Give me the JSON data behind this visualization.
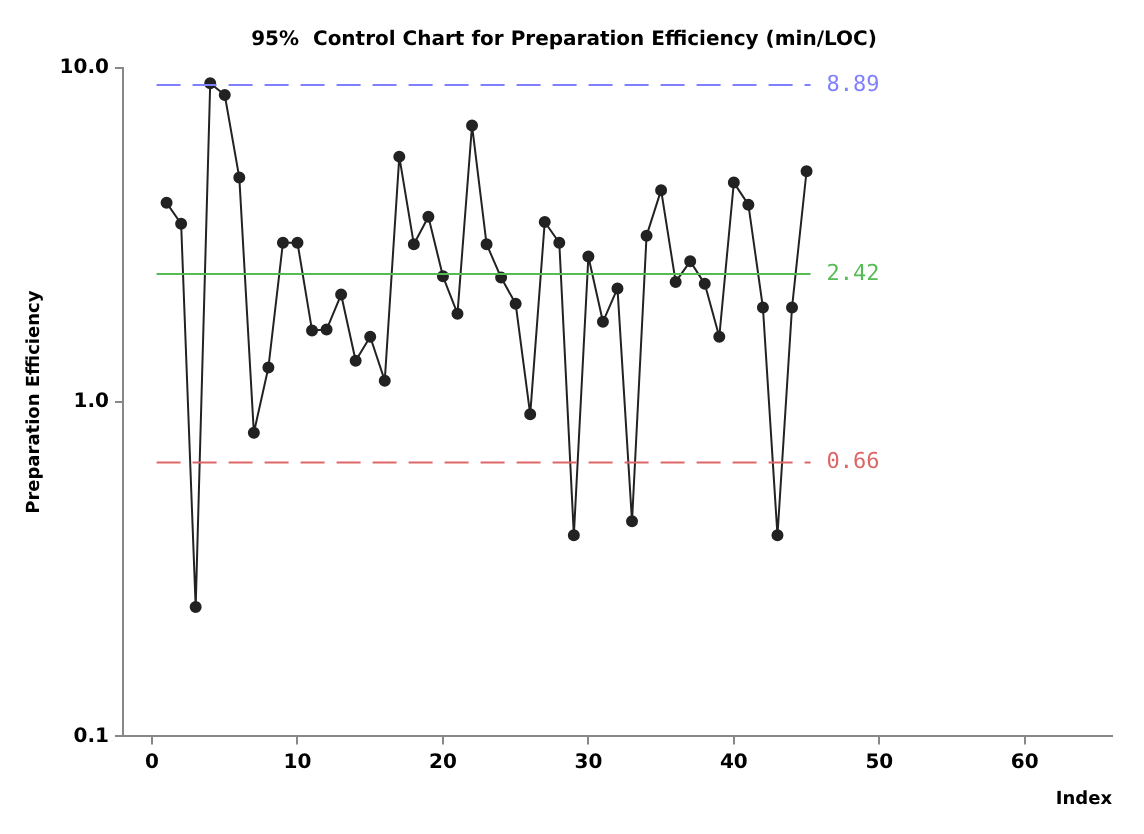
{
  "chart_data": {
    "type": "line",
    "title": "95%  Control Chart for Preparation Efficiency (min/LOC)",
    "xlabel": "Index",
    "ylabel": "Preparation Efficiency",
    "x": [
      1,
      2,
      3,
      4,
      5,
      6,
      7,
      8,
      9,
      10,
      11,
      12,
      13,
      14,
      15,
      16,
      17,
      18,
      19,
      20,
      21,
      22,
      23,
      24,
      25,
      26,
      27,
      28,
      29,
      30,
      31,
      32,
      33,
      34,
      35,
      36,
      37,
      38,
      39,
      40,
      41,
      42,
      43,
      44,
      45
    ],
    "series": [
      {
        "color": "#222222",
        "values": [
          3.95,
          3.42,
          0.244,
          9.0,
          8.3,
          4.7,
          0.81,
          1.27,
          3.0,
          3.0,
          1.64,
          1.65,
          2.1,
          1.33,
          1.57,
          1.16,
          5.43,
          2.97,
          3.59,
          2.38,
          1.84,
          6.73,
          2.97,
          2.36,
          1.97,
          0.92,
          3.46,
          3.0,
          0.4,
          2.73,
          1.74,
          2.19,
          0.44,
          3.15,
          4.31,
          2.29,
          2.64,
          2.26,
          1.57,
          4.54,
          3.9,
          1.92,
          0.4,
          1.92,
          4.91
        ]
      }
    ],
    "log": "y",
    "xlim": [
      -2,
      66
    ],
    "xticks": [
      0,
      10,
      20,
      30,
      40,
      50,
      60
    ],
    "ylim": [
      0.1,
      10
    ],
    "yticks": [
      {
        "value": 0.1,
        "label": "0.1"
      },
      {
        "value": 1,
        "label": "1.0"
      },
      {
        "value": 10,
        "label": "10.0"
      }
    ],
    "ref_lines": [
      {
        "axis": "y",
        "value": 8.89,
        "label": "8.89",
        "color": "#8080ff",
        "line_style": "dashed"
      },
      {
        "axis": "y",
        "value": 2.42,
        "label": "2.42",
        "color": "#55bb55",
        "line_style": "solid"
      },
      {
        "axis": "y",
        "value": 0.66,
        "label": "0.66",
        "color": "#dd6666",
        "line_style": "dashed"
      }
    ],
    "grid": false,
    "legend": false,
    "marker": "circle",
    "line_style": "solid"
  }
}
